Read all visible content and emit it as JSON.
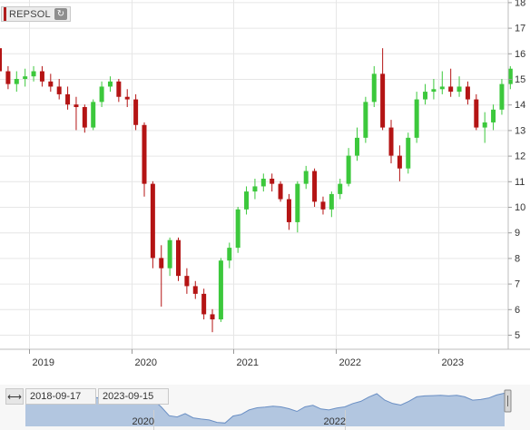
{
  "symbol": {
    "label": "REPSOL",
    "refresh_icon": "refresh-icon"
  },
  "range": {
    "start": "2018-09-17",
    "end": "2023-09-15",
    "icon": "expand-range-icon"
  },
  "chart_data": {
    "type": "candlestick",
    "title": "",
    "xlabel": "",
    "ylabel": "",
    "ylim": [
      4.5,
      18
    ],
    "y_ticks": [
      5,
      6,
      7,
      8,
      9,
      10,
      11,
      12,
      13,
      14,
      15,
      16,
      17,
      18
    ],
    "x_ticks": [
      "2019",
      "2020",
      "2021",
      "2022",
      "2023"
    ],
    "navigator_ticks": [
      "2020",
      "2022"
    ],
    "grid": true,
    "colors": {
      "up": "#3cc83c",
      "down": "#b41414",
      "navigator_fill": "#9bb5d8",
      "navigator_line": "#6a8fc4"
    },
    "x": [
      "2018-09",
      "2018-10",
      "2018-11",
      "2018-12",
      "2019-01",
      "2019-02",
      "2019-03",
      "2019-04",
      "2019-05",
      "2019-06",
      "2019-07",
      "2019-08",
      "2019-09",
      "2019-10",
      "2019-11",
      "2019-12",
      "2020-01",
      "2020-02",
      "2020-03",
      "2020-04",
      "2020-05",
      "2020-06",
      "2020-07",
      "2020-08",
      "2020-09",
      "2020-10",
      "2020-11",
      "2020-12",
      "2021-01",
      "2021-02",
      "2021-03",
      "2021-04",
      "2021-05",
      "2021-06",
      "2021-07",
      "2021-08",
      "2021-09",
      "2021-10",
      "2021-11",
      "2021-12",
      "2022-01",
      "2022-02",
      "2022-03",
      "2022-04",
      "2022-05",
      "2022-06",
      "2022-07",
      "2022-08",
      "2022-09",
      "2022-10",
      "2022-11",
      "2022-12",
      "2023-01",
      "2023-02",
      "2023-03",
      "2023-04",
      "2023-05",
      "2023-06",
      "2023-07",
      "2023-08",
      "2023-09"
    ],
    "open": [
      16.2,
      15.3,
      14.8,
      15.0,
      15.1,
      15.3,
      14.9,
      14.7,
      14.4,
      14.0,
      13.9,
      13.1,
      14.1,
      14.7,
      14.9,
      14.3,
      14.2,
      13.2,
      10.9,
      8.0,
      7.6,
      8.7,
      7.3,
      6.9,
      6.6,
      5.8,
      5.6,
      7.9,
      8.4,
      9.9,
      10.6,
      10.8,
      11.1,
      10.9,
      10.3,
      9.4,
      10.9,
      11.4,
      10.2,
      9.9,
      10.5,
      10.9,
      12.0,
      12.7,
      14.1,
      15.2,
      13.1,
      12.0,
      11.5,
      12.7,
      14.2,
      14.5,
      14.6,
      14.7,
      14.5,
      14.7,
      14.2,
      13.1,
      13.3,
      13.8,
      14.8
    ],
    "close": [
      15.3,
      14.8,
      15.0,
      15.1,
      15.3,
      14.9,
      14.7,
      14.4,
      14.0,
      13.9,
      13.1,
      14.1,
      14.7,
      14.9,
      14.3,
      14.2,
      13.2,
      10.9,
      8.0,
      7.6,
      8.7,
      7.3,
      6.9,
      6.6,
      5.8,
      5.6,
      7.9,
      8.4,
      9.9,
      10.6,
      10.8,
      11.1,
      10.9,
      10.3,
      9.4,
      10.9,
      11.4,
      10.2,
      9.9,
      10.5,
      10.9,
      12.0,
      12.7,
      14.1,
      15.2,
      13.1,
      12.0,
      11.5,
      12.7,
      14.2,
      14.5,
      14.6,
      14.7,
      14.5,
      14.7,
      14.2,
      13.1,
      13.3,
      13.8,
      14.8,
      15.4
    ],
    "high": [
      16.3,
      15.5,
      15.3,
      15.4,
      15.5,
      15.5,
      15.2,
      15.0,
      14.7,
      14.3,
      14.0,
      14.2,
      14.9,
      15.1,
      15.0,
      14.6,
      14.4,
      13.3,
      11.0,
      8.5,
      8.8,
      8.8,
      7.6,
      7.1,
      6.8,
      6.0,
      8.0,
      8.6,
      10.0,
      10.8,
      11.1,
      11.3,
      11.3,
      11.0,
      10.5,
      11.0,
      11.6,
      11.5,
      10.4,
      10.6,
      11.1,
      12.3,
      13.1,
      14.3,
      15.5,
      16.2,
      13.4,
      12.4,
      12.9,
      14.5,
      14.8,
      15.0,
      15.3,
      15.4,
      15.1,
      14.9,
      14.4,
      13.7,
      14.0,
      15.0,
      15.5
    ],
    "low": [
      15.1,
      14.6,
      14.5,
      14.7,
      14.9,
      14.7,
      14.5,
      14.2,
      13.8,
      13.0,
      12.9,
      13.0,
      13.9,
      14.5,
      14.1,
      13.9,
      13.0,
      10.4,
      7.6,
      6.1,
      7.3,
      7.1,
      6.6,
      6.4,
      5.6,
      5.1,
      5.5,
      7.6,
      8.2,
      9.7,
      10.3,
      10.6,
      10.6,
      10.2,
      9.1,
      9.0,
      10.7,
      10.0,
      9.7,
      9.6,
      10.3,
      10.8,
      11.8,
      12.5,
      13.9,
      13.0,
      11.7,
      11.0,
      11.3,
      12.5,
      14.0,
      14.2,
      14.4,
      14.3,
      14.3,
      14.0,
      13.0,
      12.5,
      13.0,
      13.6,
      14.6
    ]
  }
}
